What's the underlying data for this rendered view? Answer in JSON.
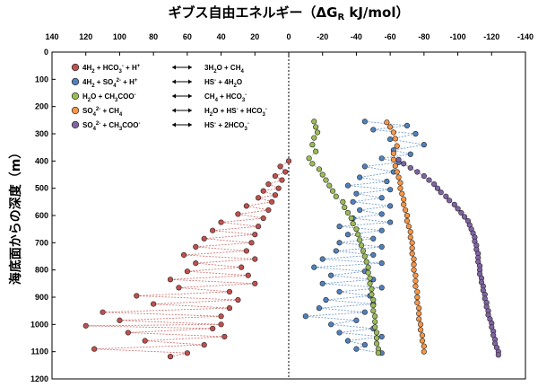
{
  "chart_data": {
    "type": "scatter",
    "title": "ギブス自由エネルギー（ΔG",
    "title_sub": "R",
    "title_unit": " kJ/mol）",
    "ylabel": "海底面からの深度（m）",
    "x_axis": {
      "position": "top",
      "reversed": true,
      "range": [
        140,
        -140
      ],
      "ticks": [
        140,
        120,
        100,
        80,
        60,
        40,
        20,
        0,
        -20,
        -40,
        -60,
        -80,
        -100,
        -120,
        -140
      ]
    },
    "y_axis": {
      "reversed": true,
      "range": [
        0,
        1200
      ],
      "ticks": [
        0,
        100,
        200,
        300,
        400,
        500,
        600,
        700,
        800,
        900,
        1000,
        1100,
        1200
      ]
    },
    "zero_line": {
      "x": 0,
      "style": "dotted"
    },
    "legend_position": "top-left",
    "legend": [
      {
        "color": "#c0504d",
        "lhs": [
          {
            "t": "4H"
          },
          {
            "t": "2",
            "s": "sub"
          },
          {
            "t": " + HCO"
          },
          {
            "t": "3",
            "s": "sub"
          },
          {
            "t": "-",
            "s": "sup"
          },
          {
            "t": " + H"
          },
          {
            "t": "+",
            "s": "sup"
          }
        ],
        "rhs": [
          {
            "t": "3H"
          },
          {
            "t": "2",
            "s": "sub"
          },
          {
            "t": "O + CH"
          },
          {
            "t": "4",
            "s": "sub"
          }
        ]
      },
      {
        "color": "#4f81bd",
        "lhs": [
          {
            "t": "4H"
          },
          {
            "t": "2",
            "s": "sub"
          },
          {
            "t": " + SO"
          },
          {
            "t": "4",
            "s": "sub"
          },
          {
            "t": "2-",
            "s": "sup"
          },
          {
            "t": " + H"
          },
          {
            "t": "+",
            "s": "sup"
          }
        ],
        "rhs": [
          {
            "t": "HS"
          },
          {
            "t": "-",
            "s": "sup"
          },
          {
            "t": " + 4H"
          },
          {
            "t": "2",
            "s": "sub"
          },
          {
            "t": "O"
          }
        ]
      },
      {
        "color": "#9bbb59",
        "lhs": [
          {
            "t": "H"
          },
          {
            "t": "2",
            "s": "sub"
          },
          {
            "t": "O + CH"
          },
          {
            "t": "3",
            "s": "sub"
          },
          {
            "t": "COO"
          },
          {
            "t": "-",
            "s": "sup"
          }
        ],
        "rhs": [
          {
            "t": "CH"
          },
          {
            "t": "4",
            "s": "sub"
          },
          {
            "t": " + HCO"
          },
          {
            "t": "3",
            "s": "sub"
          },
          {
            "t": "-",
            "s": "sup"
          }
        ]
      },
      {
        "color": "#f79646",
        "lhs": [
          {
            "t": "SO"
          },
          {
            "t": "4",
            "s": "sub"
          },
          {
            "t": "2-",
            "s": "sup"
          },
          {
            "t": " + CH"
          },
          {
            "t": "4",
            "s": "sub"
          }
        ],
        "rhs": [
          {
            "t": "H"
          },
          {
            "t": "2",
            "s": "sub"
          },
          {
            "t": "O + HS"
          },
          {
            "t": "-",
            "s": "sup"
          },
          {
            "t": " + HCO"
          },
          {
            "t": "3",
            "s": "sub"
          },
          {
            "t": "-",
            "s": "sup"
          }
        ]
      },
      {
        "color": "#8064a2",
        "lhs": [
          {
            "t": "SO"
          },
          {
            "t": "4",
            "s": "sub"
          },
          {
            "t": "2-",
            "s": "sup"
          },
          {
            "t": " + CH"
          },
          {
            "t": "3",
            "s": "sub"
          },
          {
            "t": "COO"
          },
          {
            "t": "-",
            "s": "sup"
          }
        ],
        "rhs": [
          {
            "t": "HS"
          },
          {
            "t": "-",
            "s": "sup"
          },
          {
            "t": " + 2HCO"
          },
          {
            "t": "3",
            "s": "sub"
          },
          {
            "t": "-",
            "s": "sup"
          }
        ]
      }
    ],
    "series": [
      {
        "color": "#c0504d",
        "connect": "zigzag",
        "points": [
          [
            0,
            400
          ],
          [
            5,
            420
          ],
          [
            2,
            440
          ],
          [
            8,
            455
          ],
          [
            4,
            470
          ],
          [
            12,
            485
          ],
          [
            6,
            500
          ],
          [
            15,
            510
          ],
          [
            8,
            525
          ],
          [
            18,
            535
          ],
          [
            10,
            550
          ],
          [
            25,
            565
          ],
          [
            12,
            580
          ],
          [
            30,
            595
          ],
          [
            15,
            610
          ],
          [
            40,
            625
          ],
          [
            18,
            640
          ],
          [
            45,
            655
          ],
          [
            20,
            670
          ],
          [
            50,
            685
          ],
          [
            22,
            700
          ],
          [
            55,
            715
          ],
          [
            25,
            730
          ],
          [
            62,
            745
          ],
          [
            20,
            760
          ],
          [
            55,
            775
          ],
          [
            28,
            790
          ],
          [
            60,
            805
          ],
          [
            24,
            820
          ],
          [
            70,
            835
          ],
          [
            20,
            850
          ],
          [
            65,
            865
          ],
          [
            35,
            880
          ],
          [
            90,
            895
          ],
          [
            30,
            910
          ],
          [
            80,
            925
          ],
          [
            35,
            940
          ],
          [
            110,
            955
          ],
          [
            40,
            970
          ],
          [
            100,
            985
          ],
          [
            40,
            1000
          ],
          [
            120,
            1005
          ],
          [
            45,
            1015
          ],
          [
            95,
            1030
          ],
          [
            38,
            1045
          ],
          [
            85,
            1060
          ],
          [
            50,
            1075
          ],
          [
            115,
            1090
          ],
          [
            60,
            1105
          ],
          [
            70,
            1118
          ]
        ]
      },
      {
        "color": "#4f81bd",
        "connect": "zigzag",
        "points": [
          [
            -45,
            255
          ],
          [
            -70,
            270
          ],
          [
            -50,
            285
          ],
          [
            -75,
            300
          ],
          [
            -60,
            320
          ],
          [
            -80,
            340
          ],
          [
            -62,
            360
          ],
          [
            -72,
            375
          ],
          [
            -55,
            390
          ],
          [
            -65,
            405
          ],
          [
            -45,
            420
          ],
          [
            -62,
            440
          ],
          [
            -42,
            460
          ],
          [
            -58,
            475
          ],
          [
            -35,
            490
          ],
          [
            -60,
            505
          ],
          [
            -40,
            520
          ],
          [
            -55,
            535
          ],
          [
            -38,
            550
          ],
          [
            -60,
            565
          ],
          [
            -42,
            580
          ],
          [
            -55,
            595
          ],
          [
            -38,
            610
          ],
          [
            -60,
            625
          ],
          [
            -30,
            640
          ],
          [
            -55,
            655
          ],
          [
            -35,
            670
          ],
          [
            -50,
            685
          ],
          [
            -30,
            700
          ],
          [
            -55,
            715
          ],
          [
            -28,
            730
          ],
          [
            -50,
            745
          ],
          [
            -20,
            760
          ],
          [
            -55,
            775
          ],
          [
            -15,
            790
          ],
          [
            -45,
            805
          ],
          [
            -25,
            820
          ],
          [
            -50,
            835
          ],
          [
            -20,
            850
          ],
          [
            -55,
            865
          ],
          [
            -30,
            880
          ],
          [
            -48,
            895
          ],
          [
            -22,
            910
          ],
          [
            -50,
            925
          ],
          [
            -18,
            940
          ],
          [
            -45,
            955
          ],
          [
            -10,
            970
          ],
          [
            -40,
            985
          ],
          [
            -25,
            1000
          ],
          [
            -50,
            1015
          ],
          [
            -30,
            1030
          ],
          [
            -55,
            1045
          ],
          [
            -35,
            1060
          ],
          [
            -45,
            1075
          ],
          [
            -40,
            1090
          ],
          [
            -55,
            1105
          ]
        ]
      },
      {
        "color": "#9bbb59",
        "connect": "sequential",
        "points": [
          [
            -15,
            255
          ],
          [
            -16,
            275
          ],
          [
            -17,
            295
          ],
          [
            -15,
            315
          ],
          [
            -14,
            340
          ],
          [
            -16,
            365
          ],
          [
            -12,
            390
          ],
          [
            -14,
            410
          ],
          [
            -18,
            430
          ],
          [
            -20,
            450
          ],
          [
            -22,
            470
          ],
          [
            -24,
            490
          ],
          [
            -26,
            510
          ],
          [
            -28,
            530
          ],
          [
            -32,
            550
          ],
          [
            -33,
            570
          ],
          [
            -35,
            590
          ],
          [
            -37,
            610
          ],
          [
            -38,
            630
          ],
          [
            -40,
            650
          ],
          [
            -41,
            670
          ],
          [
            -42,
            690
          ],
          [
            -43,
            710
          ],
          [
            -44,
            730
          ],
          [
            -45,
            750
          ],
          [
            -46,
            770
          ],
          [
            -47,
            790
          ],
          [
            -47,
            810
          ],
          [
            -48,
            830
          ],
          [
            -48,
            850
          ],
          [
            -49,
            870
          ],
          [
            -49,
            890
          ],
          [
            -50,
            910
          ],
          [
            -50,
            930
          ],
          [
            -50,
            950
          ],
          [
            -51,
            970
          ],
          [
            -51,
            990
          ],
          [
            -51,
            1010
          ],
          [
            -52,
            1030
          ],
          [
            -52,
            1050
          ],
          [
            -52,
            1070
          ],
          [
            -53,
            1090
          ],
          [
            -53,
            1105
          ]
        ]
      },
      {
        "color": "#f79646",
        "connect": "sequential",
        "points": [
          [
            -58,
            258
          ],
          [
            -60,
            275
          ],
          [
            -62,
            295
          ],
          [
            -63,
            318
          ],
          [
            -64,
            345
          ],
          [
            -62,
            372
          ],
          [
            -62,
            395
          ],
          [
            -63,
            418
          ],
          [
            -64,
            440
          ],
          [
            -65,
            460
          ],
          [
            -66,
            480
          ],
          [
            -66,
            500
          ],
          [
            -67,
            520
          ],
          [
            -68,
            540
          ],
          [
            -68,
            560
          ],
          [
            -69,
            580
          ],
          [
            -70,
            600
          ],
          [
            -70,
            620
          ],
          [
            -71,
            640
          ],
          [
            -72,
            660
          ],
          [
            -72,
            680
          ],
          [
            -73,
            700
          ],
          [
            -73,
            720
          ],
          [
            -73,
            740
          ],
          [
            -74,
            760
          ],
          [
            -74,
            780
          ],
          [
            -74,
            800
          ],
          [
            -75,
            820
          ],
          [
            -75,
            840
          ],
          [
            -75,
            860
          ],
          [
            -76,
            880
          ],
          [
            -76,
            900
          ],
          [
            -76,
            920
          ],
          [
            -77,
            940
          ],
          [
            -77,
            960
          ],
          [
            -77,
            980
          ],
          [
            -78,
            1000
          ],
          [
            -78,
            1020
          ],
          [
            -79,
            1040
          ],
          [
            -79,
            1060
          ],
          [
            -80,
            1080
          ],
          [
            -80,
            1100
          ]
        ]
      },
      {
        "color": "#8064a2",
        "connect": "sequential",
        "points": [
          [
            -65,
            395
          ],
          [
            -68,
            410
          ],
          [
            -72,
            425
          ],
          [
            -76,
            440
          ],
          [
            -80,
            455
          ],
          [
            -83,
            470
          ],
          [
            -86,
            485
          ],
          [
            -88,
            500
          ],
          [
            -90,
            515
          ],
          [
            -93,
            530
          ],
          [
            -95,
            545
          ],
          [
            -98,
            560
          ],
          [
            -100,
            575
          ],
          [
            -102,
            590
          ],
          [
            -104,
            605
          ],
          [
            -106,
            620
          ],
          [
            -107,
            635
          ],
          [
            -108,
            650
          ],
          [
            -109,
            665
          ],
          [
            -110,
            680
          ],
          [
            -110,
            695
          ],
          [
            -111,
            710
          ],
          [
            -111,
            725
          ],
          [
            -112,
            740
          ],
          [
            -112,
            755
          ],
          [
            -112,
            770
          ],
          [
            -113,
            785
          ],
          [
            -113,
            800
          ],
          [
            -113,
            815
          ],
          [
            -114,
            830
          ],
          [
            -114,
            845
          ],
          [
            -115,
            860
          ],
          [
            -115,
            875
          ],
          [
            -116,
            890
          ],
          [
            -116,
            905
          ],
          [
            -117,
            920
          ],
          [
            -117,
            935
          ],
          [
            -118,
            950
          ],
          [
            -118,
            965
          ],
          [
            -119,
            980
          ],
          [
            -120,
            995
          ],
          [
            -120,
            1010
          ],
          [
            -121,
            1025
          ],
          [
            -121,
            1040
          ],
          [
            -122,
            1055
          ],
          [
            -122,
            1070
          ],
          [
            -123,
            1085
          ],
          [
            -124,
            1100
          ],
          [
            -124,
            1112
          ]
        ]
      }
    ]
  }
}
